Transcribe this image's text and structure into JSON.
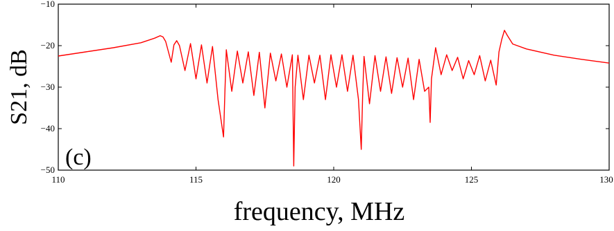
{
  "chart_data": {
    "type": "line",
    "title": "",
    "xlabel": "frequency, MHz",
    "ylabel": "S21, dB",
    "panel_label": "(c)",
    "xlim": [
      110,
      130
    ],
    "ylim": [
      -50,
      -10
    ],
    "x_ticks": [
      110,
      115,
      120,
      125,
      130
    ],
    "y_ticks": [
      -10,
      -20,
      -30,
      -40,
      -50
    ],
    "grid": false,
    "line_color": "#ff0000",
    "series": [
      {
        "x": [
          110.0,
          111.0,
          112.0,
          113.0,
          113.5,
          113.7,
          113.8,
          113.9,
          114.0,
          114.1,
          114.2,
          114.3,
          114.4,
          114.6,
          114.8,
          115.0,
          115.2,
          115.4,
          115.6,
          115.8,
          116.0,
          116.05,
          116.1,
          116.3,
          116.5,
          116.7,
          116.9,
          117.1,
          117.3,
          117.5,
          117.7,
          117.9,
          118.1,
          118.3,
          118.5,
          118.55,
          118.6,
          118.7,
          118.9,
          119.1,
          119.3,
          119.5,
          119.7,
          119.9,
          120.1,
          120.3,
          120.5,
          120.7,
          120.9,
          121.0,
          121.05,
          121.1,
          121.3,
          121.5,
          121.7,
          121.9,
          122.1,
          122.3,
          122.5,
          122.7,
          122.9,
          123.1,
          123.3,
          123.45,
          123.5,
          123.55,
          123.7,
          123.9,
          124.1,
          124.3,
          124.5,
          124.7,
          124.9,
          125.1,
          125.3,
          125.5,
          125.7,
          125.9,
          126.0,
          126.1,
          126.2,
          126.3,
          126.5,
          127.0,
          128.0,
          129.0,
          130.0
        ],
        "y": [
          -22.5,
          -21.5,
          -20.5,
          -19.3,
          -18.2,
          -17.6,
          -17.9,
          -19.0,
          -21.5,
          -24.0,
          -19.8,
          -18.8,
          -20.0,
          -26.0,
          -19.5,
          -28.0,
          -19.8,
          -29.0,
          -20.2,
          -33.0,
          -42.0,
          -31.0,
          -21.0,
          -31.0,
          -21.3,
          -29.0,
          -21.5,
          -32.0,
          -21.6,
          -35.0,
          -21.8,
          -28.5,
          -22.0,
          -30.0,
          -22.2,
          -49.0,
          -30.0,
          -22.3,
          -33.0,
          -22.3,
          -29.0,
          -22.3,
          -33.0,
          -22.2,
          -30.0,
          -22.2,
          -31.0,
          -22.3,
          -33.0,
          -45.0,
          -32.0,
          -22.6,
          -34.0,
          -22.4,
          -31.0,
          -22.7,
          -31.5,
          -22.9,
          -30.0,
          -23.0,
          -33.0,
          -23.3,
          -31.0,
          -30.0,
          -38.5,
          -28.0,
          -20.5,
          -27.0,
          -22.2,
          -26.0,
          -22.8,
          -28.0,
          -23.6,
          -27.0,
          -22.4,
          -28.5,
          -23.5,
          -29.5,
          -21.5,
          -18.5,
          -16.3,
          -17.5,
          -19.6,
          -20.8,
          -22.3,
          -23.3,
          -24.2
        ]
      }
    ]
  }
}
